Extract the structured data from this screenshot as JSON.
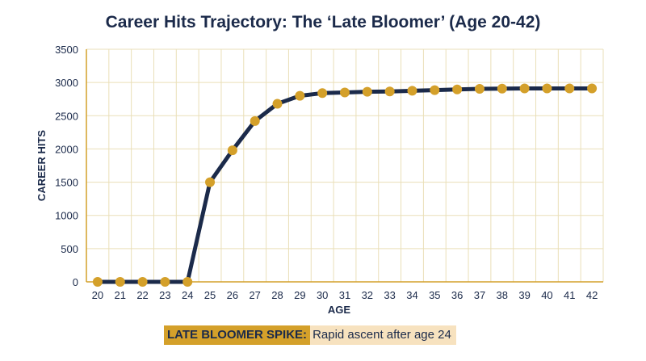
{
  "chart_data": {
    "type": "line",
    "title": "Career Hits Trajectory: The ‘Late Bloomer’ (Age 20-42)",
    "xlabel": "AGE",
    "ylabel": "CAREER HITS",
    "x": [
      20,
      21,
      22,
      23,
      24,
      25,
      26,
      27,
      28,
      29,
      30,
      31,
      32,
      33,
      34,
      35,
      36,
      37,
      38,
      39,
      40,
      41,
      42
    ],
    "series": [
      {
        "values": [
          0,
          0,
          0,
          0,
          0,
          1500,
          1980,
          2420,
          2680,
          2800,
          2840,
          2850,
          2860,
          2865,
          2875,
          2885,
          2895,
          2905,
          2908,
          2910,
          2910,
          2910,
          2910
        ]
      }
    ],
    "ylim": [
      0,
      3500
    ],
    "yticks": [
      0,
      500,
      1000,
      1500,
      2000,
      2500,
      3000,
      3500
    ],
    "grid": true,
    "colors": {
      "line": "#1b2a4a",
      "marker": "#d4a02a",
      "grid": "#eadfb8",
      "axis": "#d4a02a"
    },
    "annotation": {
      "tag": "LATE BLOOMER SPIKE:",
      "text": "Rapid ascent after age 24"
    }
  }
}
